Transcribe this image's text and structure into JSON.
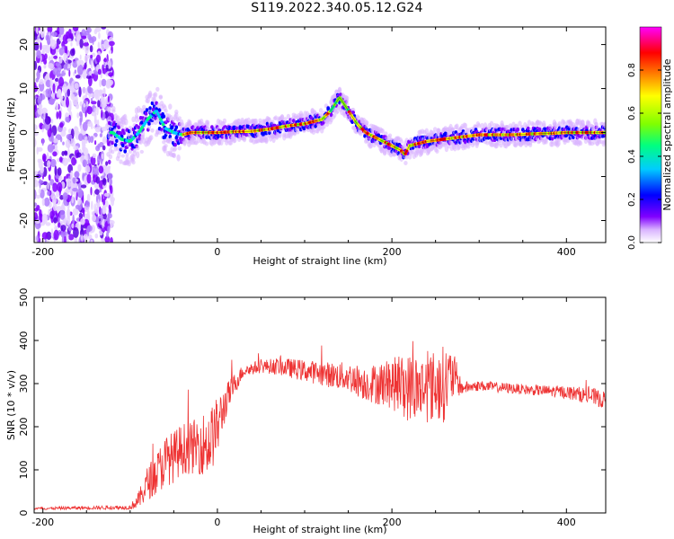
{
  "title": "S119.2022.340.05.12.G24",
  "chart_data": [
    {
      "type": "heatmap",
      "xlabel": "Height of straight line (km)",
      "ylabel": "Frequency (Hz)",
      "xlim": [
        -210,
        445
      ],
      "ylim": [
        -25,
        24
      ],
      "xticks": [
        -200,
        0,
        200,
        400
      ],
      "yticks": [
        -20,
        -10,
        0,
        10,
        20
      ],
      "grid": false,
      "colorbar": {
        "label": "Normalized spectral amplitude",
        "range": [
          0,
          1
        ],
        "ticks": [
          0.0,
          0.2,
          0.4,
          0.6,
          0.8
        ],
        "colors": [
          "#ffffff",
          "#d9b3ff",
          "#8000ff",
          "#0000ff",
          "#00ccff",
          "#00ff80",
          "#80ff00",
          "#ffff00",
          "#ff8000",
          "#ff0000",
          "#ff00ff"
        ]
      },
      "ridge": {
        "x": [
          -120,
          -110,
          -100,
          -90,
          -80,
          -70,
          -60,
          -50,
          -40,
          -30,
          -20,
          0,
          20,
          40,
          60,
          80,
          100,
          120,
          130,
          140,
          150,
          160,
          170,
          180,
          190,
          200,
          210,
          215,
          220,
          240,
          260,
          280,
          300,
          320,
          340,
          360,
          380,
          400,
          420,
          440
        ],
        "y": [
          0,
          -1.5,
          -2,
          0,
          3,
          5,
          1,
          0,
          -0.5,
          0,
          0,
          0,
          0.2,
          0.3,
          0.8,
          1.5,
          2,
          3,
          5,
          8,
          5,
          2,
          0,
          -1,
          -2,
          -3,
          -4,
          -5,
          -3,
          -2,
          -1.5,
          -1,
          -0.5,
          -0.5,
          -0.5,
          -0.3,
          -0.2,
          0,
          0,
          0
        ],
        "noise_region_x": [
          -210,
          -120
        ]
      }
    },
    {
      "type": "line",
      "xlabel": "Height of straight line (km)",
      "ylabel": "SNR (10 * v/v)",
      "xlim": [
        -210,
        445
      ],
      "ylim": [
        0,
        500
      ],
      "xticks": [
        -200,
        0,
        200,
        400
      ],
      "yticks": [
        0,
        100,
        200,
        300,
        400,
        500
      ],
      "grid": false,
      "series": [
        {
          "color": "#ee3333",
          "x": [
            -210,
            -150,
            -100,
            -90,
            -80,
            -70,
            -60,
            -50,
            -40,
            -30,
            -20,
            -10,
            0,
            10,
            20,
            30,
            50,
            70,
            100,
            130,
            150,
            170,
            200,
            220,
            240,
            260,
            270,
            280,
            300,
            330,
            360,
            400,
            430,
            445
          ],
          "y": [
            10,
            12,
            13,
            30,
            70,
            90,
            120,
            130,
            150,
            150,
            160,
            160,
            200,
            260,
            300,
            330,
            340,
            340,
            330,
            320,
            315,
            300,
            300,
            290,
            290,
            300,
            320,
            290,
            295,
            290,
            285,
            280,
            270,
            260
          ],
          "spread": [
            3,
            4,
            5,
            20,
            40,
            50,
            60,
            60,
            60,
            60,
            70,
            80,
            70,
            40,
            25,
            15,
            15,
            20,
            25,
            30,
            35,
            40,
            60,
            80,
            80,
            90,
            60,
            15,
            12,
            12,
            12,
            15,
            20,
            20
          ]
        }
      ]
    }
  ]
}
